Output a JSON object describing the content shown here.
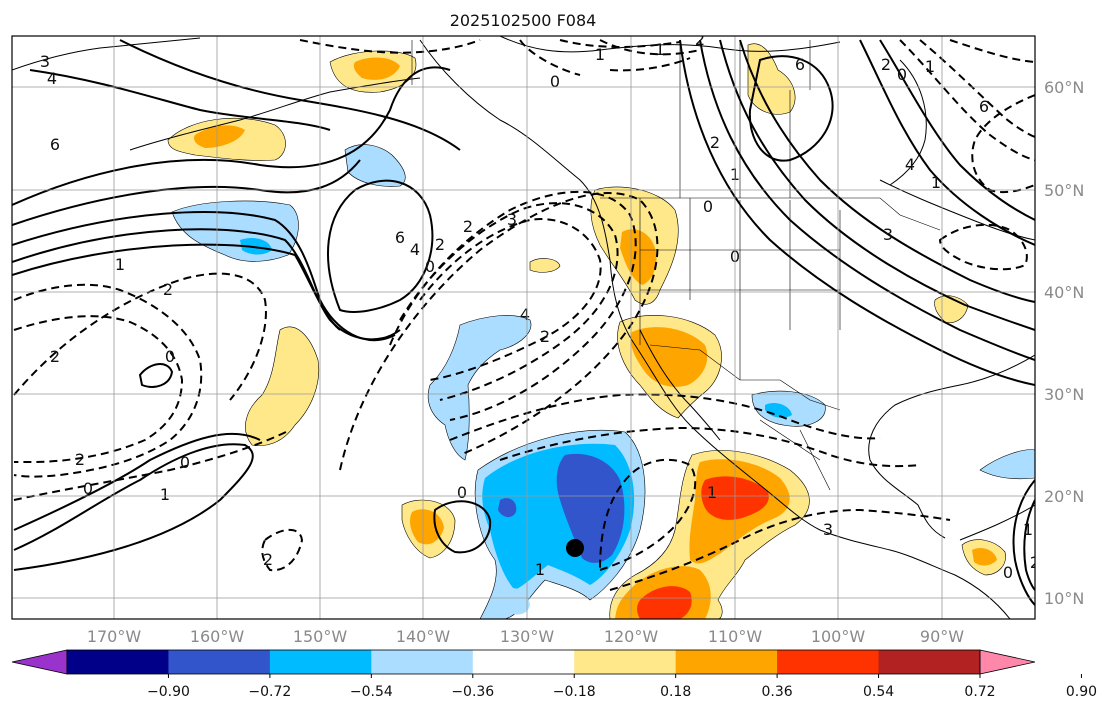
{
  "title": "2025102500 F084",
  "lat_labels": [
    "60°N",
    "50°N",
    "40°N",
    "30°N",
    "20°N",
    "10°N"
  ],
  "lon_labels": [
    "170°W",
    "160°W",
    "150°W",
    "140°W",
    "130°W",
    "120°W",
    "110°W",
    "100°W",
    "90°W"
  ],
  "colorbar": {
    "colors": [
      "#9933cc",
      "#000088",
      "#3355cc",
      "#00bbff",
      "#aaddff",
      "#ffffff",
      "#ffe88a",
      "#ffa500",
      "#ff3300",
      "#b22222",
      "#ff88aa"
    ],
    "tick_labels": [
      "−0.90",
      "−0.72",
      "−0.54",
      "−0.36",
      "−0.18",
      "0.18",
      "0.36",
      "0.54",
      "0.72",
      "0.90"
    ]
  },
  "contour_labels": [
    "3",
    "4",
    "6",
    "6",
    "0",
    "1",
    "2",
    "1",
    "6",
    "4",
    "2",
    "0",
    "2",
    "3",
    "4",
    "2",
    "0",
    "1",
    "2",
    "2",
    "0",
    "2",
    "1",
    "0",
    "0",
    "1",
    "0",
    "2",
    "1",
    "3",
    "4",
    "6",
    "2",
    "1",
    "0",
    "3",
    "1",
    "2",
    "0",
    "1",
    "1",
    "2",
    "0"
  ]
}
